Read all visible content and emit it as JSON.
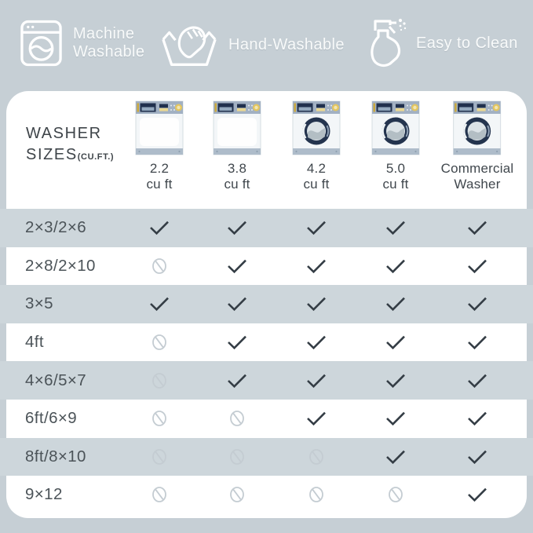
{
  "colors": {
    "background": "#c6cfd5",
    "row_band": "#cdd6db",
    "panel": "#ffffff",
    "check": "#343d45",
    "not_compatible": "#c4ccd2",
    "washer_navy": "#24344e",
    "washer_panel": "#a2b1c3",
    "washer_yellow": "#e4c65f"
  },
  "top_badges": [
    {
      "icon": "washing-machine-icon",
      "label_line1": "Machine",
      "label_line2": "Washable"
    },
    {
      "icon": "hand-wash-icon",
      "label": "Hand-Washable"
    },
    {
      "icon": "spray-bottle-icon",
      "label": "Easy to Clean"
    }
  ],
  "table": {
    "title_line1": "WASHER",
    "title_line2": "SIZES",
    "title_suffix": "(CU.FT.)",
    "columns": [
      {
        "label_lines": [
          "2.2",
          "cu ft"
        ],
        "washer": "closed"
      },
      {
        "label_lines": [
          "3.8",
          "cu ft"
        ],
        "washer": "closed"
      },
      {
        "label_lines": [
          "4.2",
          "cu ft"
        ],
        "washer": "front"
      },
      {
        "label_lines": [
          "5.0",
          "cu ft"
        ],
        "washer": "front"
      },
      {
        "label_lines": [
          "Commercial",
          "Washer"
        ],
        "washer": "front"
      }
    ],
    "rows": [
      {
        "label": "2×3/2×6",
        "values": [
          "yes",
          "yes",
          "yes",
          "yes",
          "yes"
        ]
      },
      {
        "label": "2×8/2×10",
        "values": [
          "no",
          "yes",
          "yes",
          "yes",
          "yes"
        ]
      },
      {
        "label": "3×5",
        "values": [
          "yes",
          "yes",
          "yes",
          "yes",
          "yes"
        ]
      },
      {
        "label": "4ft",
        "values": [
          "no",
          "yes",
          "yes",
          "yes",
          "yes"
        ]
      },
      {
        "label": "4×6/5×7",
        "values": [
          "no",
          "yes",
          "yes",
          "yes",
          "yes"
        ]
      },
      {
        "label": "6ft/6×9",
        "values": [
          "no",
          "no",
          "yes",
          "yes",
          "yes"
        ]
      },
      {
        "label": "8ft/8×10",
        "values": [
          "no",
          "no",
          "no",
          "yes",
          "yes"
        ]
      },
      {
        "label": "9×12",
        "values": [
          "no",
          "no",
          "no",
          "no",
          "yes"
        ]
      }
    ]
  },
  "chart_data": {
    "type": "table",
    "title": "WASHER SIZES (CU.FT.)",
    "columns": [
      "2.2 cu ft",
      "3.8 cu ft",
      "4.2 cu ft",
      "5.0 cu ft",
      "Commercial Washer"
    ],
    "rows": [
      {
        "label": "2×3/2×6",
        "compatible": [
          true,
          true,
          true,
          true,
          true
        ]
      },
      {
        "label": "2×8/2×10",
        "compatible": [
          false,
          true,
          true,
          true,
          true
        ]
      },
      {
        "label": "3×5",
        "compatible": [
          true,
          true,
          true,
          true,
          true
        ]
      },
      {
        "label": "4ft",
        "compatible": [
          false,
          true,
          true,
          true,
          true
        ]
      },
      {
        "label": "4×6/5×7",
        "compatible": [
          false,
          true,
          true,
          true,
          true
        ]
      },
      {
        "label": "6ft/6×9",
        "compatible": [
          false,
          false,
          true,
          true,
          true
        ]
      },
      {
        "label": "8ft/8×10",
        "compatible": [
          false,
          false,
          false,
          true,
          true
        ]
      },
      {
        "label": "9×12",
        "compatible": [
          false,
          false,
          false,
          false,
          true
        ]
      }
    ],
    "legend": {
      "check": "compatible",
      "slash": "not compatible"
    }
  }
}
